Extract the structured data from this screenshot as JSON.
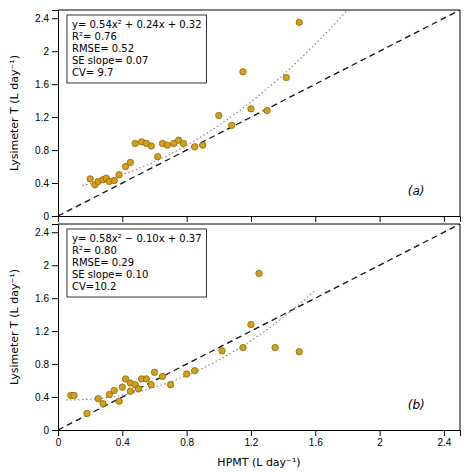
{
  "chart_data": [
    {
      "type": "scatter",
      "title": "(a)",
      "ylabel": "Lysimeter T (L day⁻¹)",
      "annotations": [
        "y= 0.54x² + 0.24x + 0.32",
        "R²= 0.76",
        "RMSE= 0.52",
        "SE slope= 0.07",
        "CV= 9.7"
      ],
      "series": [
        {
          "type": "scatter",
          "marker": "circle",
          "color": "#D4A017",
          "x": [
            0.2,
            0.23,
            0.25,
            0.28,
            0.3,
            0.32,
            0.35,
            0.38,
            0.42,
            0.45,
            0.48,
            0.52,
            0.55,
            0.58,
            0.62,
            0.65,
            0.68,
            0.72,
            0.75,
            0.78,
            0.85,
            0.9,
            1.0,
            1.08,
            1.15,
            1.2,
            1.3,
            1.42,
            1.5
          ],
          "values": [
            0.45,
            0.38,
            0.42,
            0.44,
            0.46,
            0.42,
            0.43,
            0.5,
            0.6,
            0.65,
            0.88,
            0.9,
            0.88,
            0.85,
            0.72,
            0.88,
            0.86,
            0.88,
            0.92,
            0.88,
            0.84,
            0.86,
            1.22,
            1.1,
            1.75,
            1.3,
            1.28,
            1.68,
            2.35
          ]
        },
        {
          "type": "line",
          "line_style": "dashed",
          "color": "#111111",
          "x": [
            0,
            2.5
          ],
          "values": [
            0,
            2.5
          ]
        },
        {
          "type": "fit",
          "line_style": "dotted",
          "color": "#888888",
          "coefficients": [
            0.54,
            0.24,
            0.32
          ],
          "x_range": [
            0.15,
            1.85
          ]
        }
      ],
      "xlim": [
        0,
        2.5
      ],
      "ylim": [
        0,
        2.5
      ],
      "xticks": [
        0,
        0.4,
        0.8,
        1.2,
        1.6,
        2,
        2.4
      ],
      "yticks": [
        0,
        0.4,
        0.8,
        1.2,
        1.6,
        2,
        2.4
      ],
      "grid": false,
      "tick_labels": "y"
    },
    {
      "type": "scatter",
      "title": "(b)",
      "ylabel": "Lysimeter T (L day⁻¹)",
      "xlabel": "HPMT (L day⁻¹)",
      "annotations": [
        "y= 0.58x² − 0.10x + 0.37",
        "R²= 0.80",
        "RMSE= 0.29",
        "SE slope= 0.10",
        "CV=10.2"
      ],
      "series": [
        {
          "type": "scatter",
          "marker": "circle",
          "color": "#D4A017",
          "x": [
            0.08,
            0.1,
            0.18,
            0.25,
            0.28,
            0.32,
            0.35,
            0.38,
            0.4,
            0.42,
            0.45,
            0.45,
            0.48,
            0.5,
            0.52,
            0.55,
            0.58,
            0.6,
            0.65,
            0.7,
            0.8,
            0.85,
            1.02,
            1.15,
            1.2,
            1.25,
            1.35,
            1.5
          ],
          "values": [
            0.42,
            0.42,
            0.2,
            0.38,
            0.32,
            0.43,
            0.48,
            0.35,
            0.52,
            0.62,
            0.57,
            0.47,
            0.55,
            0.5,
            0.62,
            0.62,
            0.55,
            0.7,
            0.65,
            0.55,
            0.68,
            0.72,
            0.96,
            1.0,
            1.28,
            1.9,
            1.0,
            0.95
          ]
        },
        {
          "type": "line",
          "line_style": "dashed",
          "color": "#111111",
          "x": [
            0,
            2.5
          ],
          "values": [
            0,
            2.5
          ]
        },
        {
          "type": "fit",
          "line_style": "dotted",
          "color": "#888888",
          "coefficients": [
            0.58,
            -0.1,
            0.37
          ],
          "x_range": [
            0.05,
            1.6
          ]
        }
      ],
      "xlim": [
        0,
        2.5
      ],
      "ylim": [
        0,
        2.5
      ],
      "xticks": [
        0,
        0.4,
        0.8,
        1.2,
        1.6,
        2,
        2.4
      ],
      "yticks": [
        0,
        0.4,
        0.8,
        1.2,
        1.6,
        2,
        2.4
      ],
      "grid": false
    }
  ]
}
